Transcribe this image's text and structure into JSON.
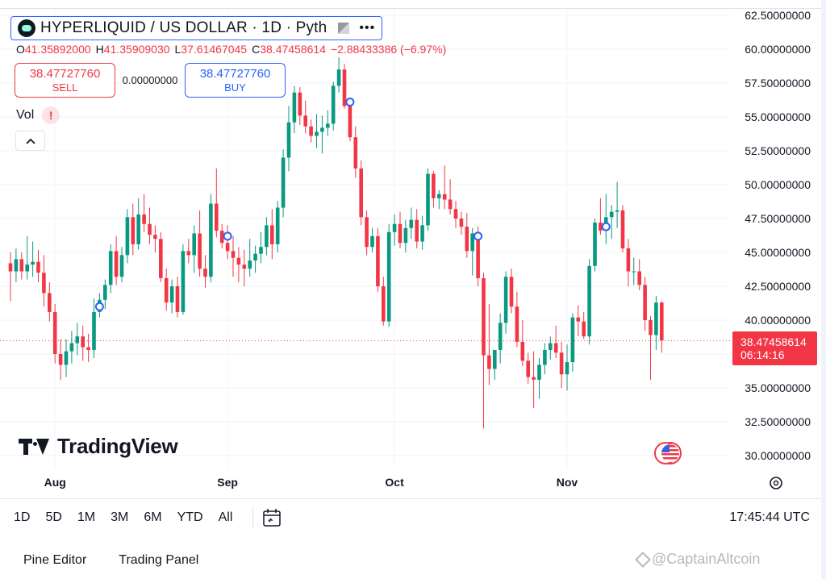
{
  "header": {
    "symbol": "HYPERLIQUID / US DOLLAR · 1D · Pyth",
    "more_icon": "•••"
  },
  "ohlc": {
    "o_label": "O",
    "o": "41.35892000",
    "h_label": "H",
    "h": "41.35909030",
    "l_label": "L",
    "l": "37.61467045",
    "c_label": "C",
    "c": "38.47458614",
    "change": "−2.88433386 (−6.97%)"
  },
  "trade": {
    "sell_price": "38.47727760",
    "sell_label": "SELL",
    "spread": "0.00000000",
    "buy_price": "38.47727760",
    "buy_label": "BUY"
  },
  "indicator": {
    "vol_label": "Vol",
    "warn": "!",
    "collapse": "^"
  },
  "branding": {
    "logo_text": "TradingView"
  },
  "price_tag": {
    "price": "38.47458614",
    "countdown": "06:14:16"
  },
  "toolbar": {
    "ranges": [
      "1D",
      "5D",
      "1M",
      "3M",
      "6M",
      "YTD",
      "All"
    ],
    "time": "17:45:44 UTC"
  },
  "bottom": {
    "pine_editor": "Pine Editor",
    "trading_panel": "Trading Panel"
  },
  "watermark": "@CaptainAltcoin",
  "colors": {
    "up": "#089981",
    "down": "#f23645",
    "accent": "#2962ff"
  },
  "chart_data": {
    "type": "candlestick",
    "y_ticks": [
      "62.50000000",
      "60.00000000",
      "57.50000000",
      "55.00000000",
      "52.50000000",
      "50.00000000",
      "47.50000000",
      "45.00000000",
      "42.50000000",
      "40.00000000",
      "37.50000000",
      "35.00000000",
      "32.50000000",
      "30.00000000"
    ],
    "ylim": [
      30,
      62.5
    ],
    "x_ticks": [
      {
        "label": "Aug",
        "index": 8
      },
      {
        "label": "Sep",
        "index": 39
      },
      {
        "label": "Oct",
        "index": 69
      },
      {
        "label": "Nov",
        "index": 100
      }
    ],
    "last_price": 38.47458614,
    "ohlc": [
      [
        44.2,
        45.0,
        41.4,
        43.6
      ],
      [
        43.6,
        45.3,
        42.8,
        44.5
      ],
      [
        44.5,
        45.0,
        43.0,
        43.6
      ],
      [
        43.6,
        46.2,
        43.0,
        44.1
      ],
      [
        44.1,
        45.8,
        43.2,
        44.3
      ],
      [
        44.3,
        45.2,
        42.8,
        43.5
      ],
      [
        43.5,
        44.8,
        41.0,
        42.0
      ],
      [
        42.0,
        42.8,
        39.9,
        40.6
      ],
      [
        40.6,
        41.2,
        36.8,
        37.5
      ],
      [
        37.5,
        38.6,
        35.6,
        36.7
      ],
      [
        36.7,
        38.6,
        35.8,
        37.7
      ],
      [
        37.7,
        39.2,
        36.8,
        38.3
      ],
      [
        38.3,
        39.8,
        37.4,
        38.8
      ],
      [
        38.8,
        39.6,
        37.0,
        38.0
      ],
      [
        38.0,
        39.0,
        36.9,
        37.8
      ],
      [
        37.8,
        41.6,
        37.2,
        40.6
      ],
      [
        40.6,
        42.0,
        40.2,
        41.5
      ],
      [
        41.5,
        43.0,
        40.8,
        42.6
      ],
      [
        42.6,
        45.6,
        42.0,
        45.1
      ],
      [
        45.1,
        46.2,
        42.6,
        43.2
      ],
      [
        43.2,
        45.4,
        42.8,
        44.8
      ],
      [
        44.8,
        48.2,
        44.2,
        47.6
      ],
      [
        47.6,
        48.6,
        44.8,
        45.6
      ],
      [
        45.6,
        49.0,
        45.2,
        47.8
      ],
      [
        47.8,
        49.3,
        46.5,
        47.1
      ],
      [
        47.1,
        48.3,
        45.6,
        46.3
      ],
      [
        46.3,
        47.0,
        45.0,
        46.0
      ],
      [
        46.0,
        46.5,
        42.8,
        43.1
      ],
      [
        43.1,
        43.8,
        40.7,
        41.3
      ],
      [
        41.3,
        43.0,
        40.5,
        42.5
      ],
      [
        42.5,
        43.2,
        40.2,
        40.6
      ],
      [
        40.6,
        45.6,
        40.4,
        45.1
      ],
      [
        45.1,
        46.0,
        44.2,
        44.8
      ],
      [
        44.8,
        47.0,
        43.5,
        46.4
      ],
      [
        46.4,
        48.1,
        43.2,
        43.8
      ],
      [
        43.8,
        44.8,
        42.4,
        43.2
      ],
      [
        43.2,
        49.3,
        42.8,
        48.6
      ],
      [
        48.6,
        51.2,
        46.1,
        46.6
      ],
      [
        46.6,
        47.1,
        45.3,
        45.7
      ],
      [
        45.7,
        47.0,
        44.5,
        45.1
      ],
      [
        45.1,
        46.2,
        43.2,
        44.6
      ],
      [
        44.6,
        45.4,
        42.8,
        44.1
      ],
      [
        44.1,
        45.2,
        42.5,
        43.8
      ],
      [
        43.8,
        46.0,
        43.2,
        44.4
      ],
      [
        44.4,
        45.5,
        43.5,
        44.9
      ],
      [
        44.9,
        46.5,
        44.2,
        45.4
      ],
      [
        45.4,
        47.6,
        44.8,
        47.0
      ],
      [
        47.0,
        48.2,
        44.5,
        45.6
      ],
      [
        45.6,
        48.8,
        45.0,
        48.3
      ],
      [
        48.3,
        52.6,
        47.6,
        52.0
      ],
      [
        52.0,
        55.8,
        51.0,
        54.6
      ],
      [
        54.6,
        57.3,
        53.8,
        56.8
      ],
      [
        56.8,
        57.2,
        54.4,
        55.1
      ],
      [
        55.1,
        56.2,
        53.8,
        54.3
      ],
      [
        54.3,
        54.8,
        53.1,
        53.6
      ],
      [
        53.6,
        55.2,
        52.7,
        53.9
      ],
      [
        53.9,
        55.1,
        52.3,
        54.2
      ],
      [
        54.2,
        55.5,
        53.6,
        54.5
      ],
      [
        54.5,
        57.6,
        54.0,
        57.3
      ],
      [
        57.3,
        59.4,
        56.8,
        58.5
      ],
      [
        58.5,
        58.9,
        55.6,
        55.8
      ],
      [
        55.8,
        56.4,
        53.2,
        53.5
      ],
      [
        53.5,
        54.3,
        50.5,
        51.2
      ],
      [
        51.2,
        51.8,
        47.0,
        47.6
      ],
      [
        47.6,
        48.1,
        44.8,
        45.4
      ],
      [
        45.4,
        46.8,
        45.0,
        46.2
      ],
      [
        46.2,
        46.8,
        42.1,
        42.5
      ],
      [
        42.5,
        43.2,
        39.6,
        39.9
      ],
      [
        39.9,
        47.1,
        39.5,
        46.5
      ],
      [
        46.5,
        47.8,
        45.5,
        47.1
      ],
      [
        47.1,
        48.0,
        45.3,
        45.7
      ],
      [
        45.7,
        47.4,
        45.0,
        46.8
      ],
      [
        46.8,
        48.3,
        46.0,
        47.4
      ],
      [
        47.4,
        48.2,
        45.3,
        45.8
      ],
      [
        45.8,
        47.7,
        45.2,
        47.0
      ],
      [
        47.0,
        51.2,
        46.6,
        50.8
      ],
      [
        50.8,
        51.0,
        48.3,
        49.0
      ],
      [
        49.0,
        49.6,
        48.2,
        49.3
      ],
      [
        49.3,
        51.4,
        48.2,
        48.9
      ],
      [
        48.9,
        50.4,
        47.8,
        48.2
      ],
      [
        48.2,
        48.8,
        46.8,
        47.5
      ],
      [
        47.5,
        48.0,
        46.3,
        46.9
      ],
      [
        46.9,
        47.9,
        44.6,
        45.1
      ],
      [
        45.1,
        46.8,
        43.3,
        46.4
      ],
      [
        46.4,
        46.9,
        42.5,
        43.1
      ],
      [
        43.1,
        43.5,
        32.0,
        37.4
      ],
      [
        37.4,
        41.2,
        35.2,
        36.4
      ],
      [
        36.4,
        37.8,
        35.6,
        37.8
      ],
      [
        37.8,
        40.5,
        36.8,
        39.8
      ],
      [
        39.8,
        43.6,
        39.0,
        43.2
      ],
      [
        43.2,
        43.8,
        40.5,
        41.0
      ],
      [
        41.0,
        42.1,
        38.0,
        38.4
      ],
      [
        38.4,
        40.0,
        36.6,
        37.0
      ],
      [
        37.0,
        37.6,
        35.3,
        35.8
      ],
      [
        35.8,
        37.7,
        33.5,
        35.6
      ],
      [
        35.6,
        37.2,
        34.2,
        36.7
      ],
      [
        36.7,
        38.3,
        36.0,
        37.8
      ],
      [
        37.8,
        38.8,
        37.1,
        38.3
      ],
      [
        38.3,
        39.6,
        37.2,
        37.6
      ],
      [
        37.6,
        38.4,
        35.0,
        36.0
      ],
      [
        36.0,
        38.2,
        34.8,
        36.9
      ],
      [
        36.9,
        40.5,
        36.2,
        40.2
      ],
      [
        40.2,
        41.1,
        38.8,
        39.9
      ],
      [
        39.9,
        40.6,
        38.6,
        38.8
      ],
      [
        38.8,
        44.5,
        38.2,
        44.0
      ],
      [
        44.0,
        47.5,
        43.6,
        47.2
      ],
      [
        47.2,
        49.0,
        46.3,
        46.6
      ],
      [
        46.6,
        49.3,
        45.6,
        47.6
      ],
      [
        47.6,
        48.5,
        46.0,
        48.0
      ],
      [
        48.0,
        50.2,
        46.8,
        48.1
      ],
      [
        48.1,
        48.5,
        45.0,
        45.3
      ],
      [
        45.3,
        46.0,
        42.5,
        43.6
      ],
      [
        43.6,
        44.6,
        42.6,
        43.6
      ],
      [
        43.6,
        44.5,
        42.2,
        42.6
      ],
      [
        42.6,
        43.2,
        39.2,
        40.0
      ],
      [
        40.0,
        40.3,
        35.6,
        38.9
      ],
      [
        38.9,
        41.8,
        37.8,
        41.3
      ],
      [
        41.3,
        41.4,
        37.6,
        38.5
      ]
    ]
  }
}
